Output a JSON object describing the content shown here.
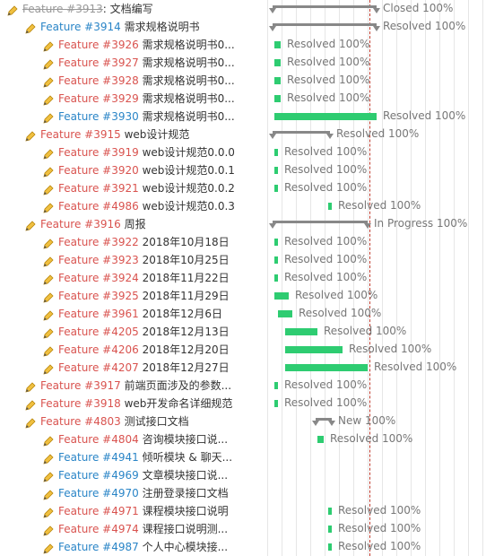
{
  "issues": [
    {
      "tracker": "Feature #3913",
      "title": "文档编写",
      "state": "closed",
      "level": 0,
      "status": "Closed 100%",
      "kind": "parent"
    },
    {
      "tracker": "Feature #3914",
      "title": "需求规格说明书",
      "state": "blue",
      "level": 1,
      "status": "Resolved 100%",
      "kind": "parent"
    },
    {
      "tracker": "Feature #3926",
      "title": "需求规格说明书0...",
      "state": "red",
      "level": 2,
      "status": "Resolved 100%",
      "kind": "task"
    },
    {
      "tracker": "Feature #3927",
      "title": "需求规格说明书0...",
      "state": "red",
      "level": 2,
      "status": "Resolved 100%",
      "kind": "task"
    },
    {
      "tracker": "Feature #3928",
      "title": "需求规格说明书0...",
      "state": "red",
      "level": 2,
      "status": "Resolved 100%",
      "kind": "task"
    },
    {
      "tracker": "Feature #3929",
      "title": "需求规格说明书0...",
      "state": "red",
      "level": 2,
      "status": "Resolved 100%",
      "kind": "task"
    },
    {
      "tracker": "Feature #3930",
      "title": "需求规格说明书0...",
      "state": "blue",
      "level": 2,
      "status": "Resolved 100%",
      "kind": "task"
    },
    {
      "tracker": "Feature #3915",
      "title": "web设计规范",
      "state": "red",
      "level": 1,
      "status": "Resolved 100%",
      "kind": "parent"
    },
    {
      "tracker": "Feature #3919",
      "title": "web设计规范0.0.0",
      "state": "red",
      "level": 2,
      "status": "Resolved 100%",
      "kind": "task"
    },
    {
      "tracker": "Feature #3920",
      "title": "web设计规范0.0.1",
      "state": "red",
      "level": 2,
      "status": "Resolved 100%",
      "kind": "task"
    },
    {
      "tracker": "Feature #3921",
      "title": "web设计规范0.0.2",
      "state": "red",
      "level": 2,
      "status": "Resolved 100%",
      "kind": "task"
    },
    {
      "tracker": "Feature #4986",
      "title": "web设计规范0.0.3",
      "state": "red",
      "level": 2,
      "status": "Resolved 100%",
      "kind": "task"
    },
    {
      "tracker": "Feature #3916",
      "title": "周报",
      "state": "red",
      "level": 1,
      "status": "In Progress 100%",
      "kind": "parent"
    },
    {
      "tracker": "Feature #3922",
      "title": "2018年10月18日",
      "state": "red",
      "level": 2,
      "status": "Resolved 100%",
      "kind": "task"
    },
    {
      "tracker": "Feature #3923",
      "title": "2018年10月25日",
      "state": "red",
      "level": 2,
      "status": "Resolved 100%",
      "kind": "task"
    },
    {
      "tracker": "Feature #3924",
      "title": "2018年11月22日",
      "state": "red",
      "level": 2,
      "status": "Resolved 100%",
      "kind": "task"
    },
    {
      "tracker": "Feature #3925",
      "title": "2018年11月29日",
      "state": "red",
      "level": 2,
      "status": "Resolved 100%",
      "kind": "task"
    },
    {
      "tracker": "Feature #3961",
      "title": "2018年12月6日",
      "state": "red",
      "level": 2,
      "status": "Resolved 100%",
      "kind": "task"
    },
    {
      "tracker": "Feature #4205",
      "title": "2018年12月13日",
      "state": "red",
      "level": 2,
      "status": "Resolved 100%",
      "kind": "task"
    },
    {
      "tracker": "Feature #4206",
      "title": "2018年12月20日",
      "state": "red",
      "level": 2,
      "status": "Resolved 100%",
      "kind": "task"
    },
    {
      "tracker": "Feature #4207",
      "title": "2018年12月27日",
      "state": "red",
      "level": 2,
      "status": "Resolved 100%",
      "kind": "task"
    },
    {
      "tracker": "Feature #3917",
      "title": "前端页面涉及的参数...",
      "state": "red",
      "level": 1,
      "status": "Resolved 100%",
      "kind": "task"
    },
    {
      "tracker": "Feature #3918",
      "title": "web开发命名详细规范",
      "state": "red",
      "level": 1,
      "status": "Resolved 100%",
      "kind": "task"
    },
    {
      "tracker": "Feature #4803",
      "title": "测试接口文档",
      "state": "red",
      "level": 1,
      "status": "New 100%",
      "kind": "parent"
    },
    {
      "tracker": "Feature #4804",
      "title": "咨询模块接口说...",
      "state": "red",
      "level": 2,
      "status": "Resolved 100%",
      "kind": "task"
    },
    {
      "tracker": "Feature #4941",
      "title": "倾听模块 & 聊天...",
      "state": "blue",
      "level": 2,
      "status": "",
      "kind": "none"
    },
    {
      "tracker": "Feature #4969",
      "title": "文章模块接口说...",
      "state": "blue",
      "level": 2,
      "status": "",
      "kind": "none"
    },
    {
      "tracker": "Feature #4970",
      "title": "注册登录接口文档",
      "state": "blue",
      "level": 2,
      "status": "",
      "kind": "none"
    },
    {
      "tracker": "Feature #4971",
      "title": "课程模块接口说明",
      "state": "red",
      "level": 2,
      "status": "Resolved 100%",
      "kind": "task"
    },
    {
      "tracker": "Feature #4974",
      "title": "课程接口说明测...",
      "state": "red",
      "level": 2,
      "status": "Resolved 100%",
      "kind": "task"
    },
    {
      "tracker": "Feature #4987",
      "title": "个人中心模块接...",
      "state": "blue",
      "level": 2,
      "status": "Resolved 100%",
      "kind": "task"
    }
  ],
  "colors": {
    "bar": "#2ecc71",
    "parent_bar": "#888888",
    "today_line": "#c0392b",
    "tracker_red": "#d9534f",
    "tracker_blue": "#2a85c7"
  },
  "icons": {
    "issue": "pencil-icon"
  }
}
